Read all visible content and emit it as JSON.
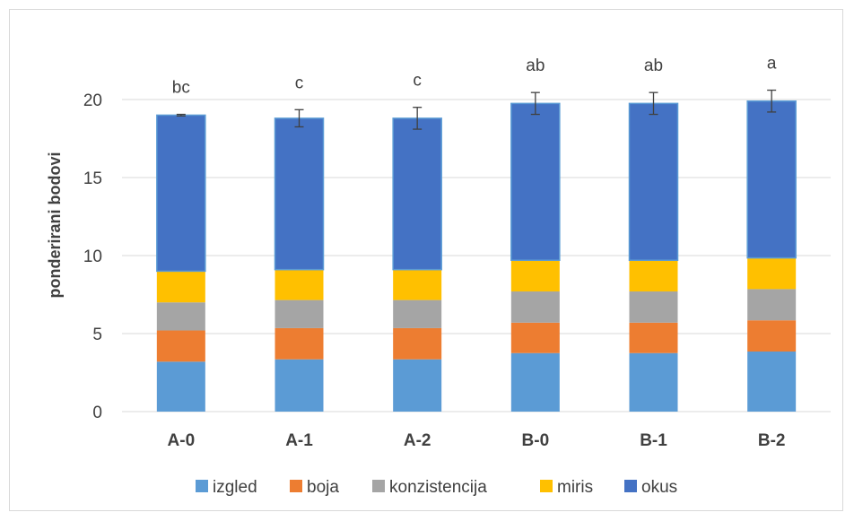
{
  "chart_data": {
    "type": "bar",
    "stacked": true,
    "title": "",
    "xlabel": "",
    "ylabel": "ponderirani bodovi",
    "ylim": [
      0,
      20
    ],
    "yticks": [
      0,
      5,
      10,
      15,
      20
    ],
    "grid": true,
    "legend_position": "bottom",
    "categories": [
      "A-0",
      "A-1",
      "A-2",
      "B-0",
      "B-1",
      "B-2"
    ],
    "series": [
      {
        "name": "izgled",
        "color": "#5b9bd5",
        "values": [
          3.2,
          3.35,
          3.35,
          3.75,
          3.75,
          3.85
        ]
      },
      {
        "name": "boja",
        "color": "#ed7d31",
        "values": [
          2.0,
          2.0,
          2.0,
          1.95,
          1.95,
          2.0
        ]
      },
      {
        "name": "konzistencija",
        "color": "#a5a5a5",
        "values": [
          1.8,
          1.8,
          1.8,
          2.0,
          2.0,
          2.0
        ]
      },
      {
        "name": "miris",
        "color": "#ffc000",
        "values": [
          2.0,
          1.95,
          1.95,
          2.0,
          2.0,
          2.0
        ]
      },
      {
        "name": "okus",
        "color": "#4472c4",
        "values": [
          10.0,
          9.7,
          9.7,
          10.05,
          10.05,
          10.05
        ]
      }
    ],
    "totals": [
      19.0,
      18.8,
      18.8,
      19.75,
      19.75,
      19.9
    ],
    "error": [
      0.05,
      0.55,
      0.7,
      0.7,
      0.7,
      0.7
    ],
    "significance_labels": [
      "bc",
      "c",
      "c",
      "ab",
      "ab",
      "a"
    ]
  }
}
